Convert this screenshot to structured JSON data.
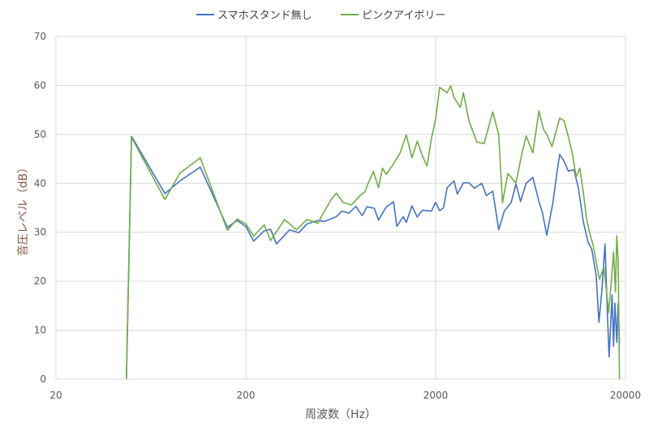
{
  "chart_data": {
    "type": "line",
    "title": "",
    "xlabel": "周波数（Hz）",
    "ylabel": "音圧レベル（dB）",
    "xscale": "log",
    "xlim": [
      20,
      20000
    ],
    "ylim": [
      0,
      70
    ],
    "x_ticks": [
      20,
      200,
      2000,
      20000
    ],
    "x_tick_labels": [
      "20",
      "200",
      "2000",
      "20000"
    ],
    "y_ticks": [
      0,
      10,
      20,
      30,
      40,
      50,
      60,
      70
    ],
    "grid": true,
    "legend_position": "top",
    "series": [
      {
        "name": "スマホスタンド無し",
        "color": "#4472c4",
        "points": [
          [
            47,
            0
          ],
          [
            50,
            49.6
          ],
          [
            75,
            37.9
          ],
          [
            90,
            40.5
          ],
          [
            115,
            43.3
          ],
          [
            160,
            31.0
          ],
          [
            180,
            32.4
          ],
          [
            200,
            31.2
          ],
          [
            220,
            28.2
          ],
          [
            250,
            30.3
          ],
          [
            270,
            30.6
          ],
          [
            290,
            27.6
          ],
          [
            340,
            30.5
          ],
          [
            380,
            29.9
          ],
          [
            420,
            31.7
          ],
          [
            480,
            32.4
          ],
          [
            520,
            32.2
          ],
          [
            600,
            33.2
          ],
          [
            640,
            34.3
          ],
          [
            700,
            33.9
          ],
          [
            760,
            35.3
          ],
          [
            820,
            33.4
          ],
          [
            870,
            35.2
          ],
          [
            950,
            34.9
          ],
          [
            1000,
            32.5
          ],
          [
            1100,
            35.2
          ],
          [
            1200,
            36.2
          ],
          [
            1250,
            31.2
          ],
          [
            1350,
            33.2
          ],
          [
            1400,
            32.0
          ],
          [
            1500,
            35.4
          ],
          [
            1600,
            33.1
          ],
          [
            1700,
            34.5
          ],
          [
            1800,
            34.4
          ],
          [
            1900,
            34.3
          ],
          [
            2000,
            36.1
          ],
          [
            2100,
            34.4
          ],
          [
            2200,
            35.0
          ],
          [
            2300,
            39.1
          ],
          [
            2500,
            40.5
          ],
          [
            2600,
            37.8
          ],
          [
            2800,
            40.1
          ],
          [
            3000,
            40.1
          ],
          [
            3200,
            39.0
          ],
          [
            3500,
            40.0
          ],
          [
            3700,
            37.5
          ],
          [
            4000,
            38.4
          ],
          [
            4300,
            30.5
          ],
          [
            4600,
            34.3
          ],
          [
            5000,
            36.1
          ],
          [
            5300,
            39.9
          ],
          [
            5600,
            36.3
          ],
          [
            6000,
            40.0
          ],
          [
            6500,
            41.2
          ],
          [
            7000,
            36.3
          ],
          [
            7300,
            34.0
          ],
          [
            7700,
            29.4
          ],
          [
            8300,
            36.1
          ],
          [
            8700,
            42.1
          ],
          [
            9000,
            45.9
          ],
          [
            9500,
            44.5
          ],
          [
            10000,
            42.5
          ],
          [
            10700,
            42.8
          ],
          [
            11300,
            39.0
          ],
          [
            12000,
            32.1
          ],
          [
            12700,
            28.0
          ],
          [
            13300,
            26.5
          ],
          [
            14000,
            21.3
          ],
          [
            14500,
            11.6
          ],
          [
            15000,
            17.9
          ],
          [
            15600,
            27.6
          ],
          [
            16000,
            15.2
          ],
          [
            16400,
            4.5
          ],
          [
            17000,
            17.2
          ],
          [
            17300,
            6.7
          ],
          [
            17600,
            15.5
          ],
          [
            18000,
            7.5
          ],
          [
            18300,
            15.5
          ],
          [
            18600,
            7.2
          ]
        ]
      },
      {
        "name": "ピンクアイボリー",
        "color": "#70ad47",
        "points": [
          [
            47,
            0
          ],
          [
            50,
            49.4
          ],
          [
            75,
            36.7
          ],
          [
            90,
            42.1
          ],
          [
            115,
            45.2
          ],
          [
            160,
            30.4
          ],
          [
            180,
            32.7
          ],
          [
            200,
            31.7
          ],
          [
            220,
            29.2
          ],
          [
            250,
            31.5
          ],
          [
            270,
            28.3
          ],
          [
            290,
            30.1
          ],
          [
            320,
            32.6
          ],
          [
            370,
            30.5
          ],
          [
            420,
            32.6
          ],
          [
            480,
            31.8
          ],
          [
            500,
            33.2
          ],
          [
            560,
            36.5
          ],
          [
            600,
            38.0
          ],
          [
            650,
            36.1
          ],
          [
            720,
            35.6
          ],
          [
            800,
            37.5
          ],
          [
            850,
            38.3
          ],
          [
            880,
            39.9
          ],
          [
            940,
            42.4
          ],
          [
            1000,
            39.1
          ],
          [
            1050,
            43.1
          ],
          [
            1100,
            41.8
          ],
          [
            1200,
            44.0
          ],
          [
            1300,
            46.2
          ],
          [
            1400,
            49.9
          ],
          [
            1500,
            45.2
          ],
          [
            1600,
            48.6
          ],
          [
            1700,
            45.7
          ],
          [
            1800,
            43.5
          ],
          [
            1900,
            49.1
          ],
          [
            2000,
            53.2
          ],
          [
            2100,
            59.6
          ],
          [
            2300,
            58.5
          ],
          [
            2400,
            59.9
          ],
          [
            2500,
            57.5
          ],
          [
            2700,
            55.5
          ],
          [
            2800,
            58.5
          ],
          [
            3000,
            52.7
          ],
          [
            3300,
            48.4
          ],
          [
            3600,
            48.1
          ],
          [
            4000,
            54.6
          ],
          [
            4300,
            49.9
          ],
          [
            4500,
            36.0
          ],
          [
            4800,
            42.0
          ],
          [
            5300,
            40.1
          ],
          [
            5700,
            46.1
          ],
          [
            6000,
            49.7
          ],
          [
            6500,
            46.2
          ],
          [
            7000,
            54.8
          ],
          [
            7400,
            51.0
          ],
          [
            7700,
            50.0
          ],
          [
            8200,
            47.5
          ],
          [
            8700,
            51.2
          ],
          [
            9000,
            53.3
          ],
          [
            9500,
            52.8
          ],
          [
            10000,
            49.5
          ],
          [
            10500,
            46.1
          ],
          [
            11000,
            41.3
          ],
          [
            11500,
            43.1
          ],
          [
            12000,
            38.0
          ],
          [
            12500,
            32.6
          ],
          [
            13000,
            29.6
          ],
          [
            13500,
            27.4
          ],
          [
            14000,
            24.0
          ],
          [
            14600,
            20.4
          ],
          [
            15400,
            22.9
          ],
          [
            15800,
            18.9
          ],
          [
            16300,
            13.6
          ],
          [
            16700,
            18.3
          ],
          [
            17300,
            26.0
          ],
          [
            17700,
            17.8
          ],
          [
            18000,
            29.3
          ],
          [
            18300,
            24.0
          ],
          [
            18600,
            0
          ]
        ]
      }
    ]
  }
}
